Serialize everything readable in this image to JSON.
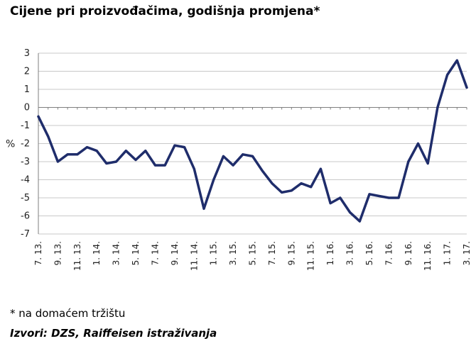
{
  "title": "Cijene pri proizvođačima, godišnja promjena*",
  "footnote": "* na domaćem tržištu",
  "source": "Izvori: DZS, Raiffeisen istraživanja",
  "colors": {
    "line": "#1f2d6b",
    "grid": "#c8c8c8",
    "axis": "#7f7f7f"
  },
  "chart_data": {
    "type": "line",
    "title": "Cijene pri proizvođačima, godišnja promjena*",
    "xlabel": "",
    "ylabel": "%",
    "ylim": [
      -7,
      3
    ],
    "yticks": [
      3,
      2,
      1,
      0,
      -1,
      -2,
      -3,
      -4,
      -5,
      -6,
      -7
    ],
    "grid": true,
    "legend": "none",
    "xticks": [
      "7. 13.",
      "9. 13.",
      "11. 13.",
      "1. 14.",
      "3. 14.",
      "5. 14.",
      "7. 14.",
      "9. 14.",
      "11. 14.",
      "1. 15.",
      "3. 15.",
      "5. 15.",
      "7. 15.",
      "9. 15.",
      "11. 15.",
      "1. 16.",
      "3. 16.",
      "5. 16.",
      "7. 16.",
      "9. 16.",
      "11. 16.",
      "1. 17.",
      "3. 17."
    ],
    "x": [
      "7. 13.",
      "8. 13.",
      "9. 13.",
      "10. 13.",
      "11. 13.",
      "12. 13.",
      "1. 14.",
      "2. 14.",
      "3. 14.",
      "4. 14.",
      "5. 14.",
      "6. 14.",
      "7. 14.",
      "8. 14.",
      "9. 14.",
      "10. 14.",
      "11. 14.",
      "12. 14.",
      "1. 15.",
      "2. 15.",
      "3. 15.",
      "4. 15.",
      "5. 15.",
      "6. 15.",
      "7. 15.",
      "8. 15.",
      "9. 15.",
      "10. 15.",
      "11. 15.",
      "12. 15.",
      "1. 16.",
      "2. 16.",
      "3. 16.",
      "4. 16.",
      "5. 16.",
      "6. 16.",
      "7. 16.",
      "8. 16.",
      "9. 16.",
      "10. 16.",
      "11. 16.",
      "12. 16.",
      "1. 17.",
      "2. 17.",
      "3. 17."
    ],
    "series": [
      {
        "values": [
          -0.5,
          -1.6,
          -3.0,
          -2.6,
          -2.6,
          -2.2,
          -2.4,
          -3.1,
          -3.0,
          -2.4,
          -2.9,
          -2.4,
          -3.2,
          -3.2,
          -2.1,
          -2.2,
          -3.4,
          -5.6,
          -4.0,
          -2.7,
          -3.2,
          -2.6,
          -2.7,
          -3.5,
          -4.2,
          -4.7,
          -4.6,
          -4.2,
          -4.4,
          -3.4,
          -5.3,
          -5.0,
          -5.8,
          -6.3,
          -4.8,
          -4.9,
          -5.0,
          -5.0,
          -3.0,
          -2.0,
          -3.1,
          0.0,
          1.8,
          2.6,
          1.1
        ]
      }
    ]
  }
}
